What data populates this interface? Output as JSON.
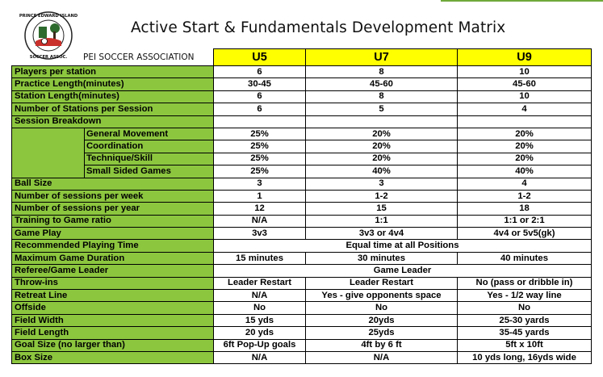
{
  "header": {
    "title": "Active Start & Fundamentals Development Matrix",
    "association": "PEI SOCCER ASSOCIATION",
    "logo_text_top": "PRINCE EDWARD ISLAND",
    "logo_text_bottom": "SOCCER ASSOC."
  },
  "colors": {
    "label_green": "#8cc63f",
    "header_yellow": "#ffff00"
  },
  "columns": [
    "U5",
    "U7",
    "U9"
  ],
  "rows": [
    {
      "label": "Players per station",
      "u5": "6",
      "u7": "8",
      "u9": "10"
    },
    {
      "label": "Practice Length(minutes)",
      "u5": "30-45",
      "u7": "45-60",
      "u9": "45-60"
    },
    {
      "label": "Station Length(minutes)",
      "u5": "6",
      "u7": "8",
      "u9": "10"
    },
    {
      "label": "Number of Stations per Session",
      "u5": "6",
      "u7": "5",
      "u9": "4"
    },
    {
      "label": "Session Breakdown"
    },
    {
      "label": "General Movement",
      "u5": "25%",
      "u7": "20%",
      "u9": "20%"
    },
    {
      "label": "Coordination",
      "u5": "25%",
      "u7": "20%",
      "u9": "20%"
    },
    {
      "label": "Technique/Skill",
      "u5": "25%",
      "u7": "20%",
      "u9": "20%"
    },
    {
      "label": "Small Sided Games",
      "u5": "25%",
      "u7": "40%",
      "u9": "40%"
    },
    {
      "label": "Ball Size",
      "u5": "3",
      "u7": "3",
      "u9": "4"
    },
    {
      "label": "Number of sessions per week",
      "u5": "1",
      "u7": "1-2",
      "u9": "1-2"
    },
    {
      "label": "Number of sessions per year",
      "u5": "12",
      "u7": "15",
      "u9": "18"
    },
    {
      "label": "Training to Game ratio",
      "u5": "N/A",
      "u7": "1:1",
      "u9": "1:1 or 2:1"
    },
    {
      "label": "Game Play",
      "u5": "3v3",
      "u7": "3v3 or 4v4",
      "u9": "4v4 or 5v5(gk)"
    },
    {
      "label": "Recommended Playing Time",
      "all": "Equal time at all Positions"
    },
    {
      "label": "Maximum Game Duration",
      "u5": "15 minutes",
      "u7": "30 minutes",
      "u9": "40 minutes"
    },
    {
      "label": "Referee/Game Leader",
      "all": "Game Leader"
    },
    {
      "label": "Throw-ins",
      "u5": "Leader Restart",
      "u7": "Leader Restart",
      "u9": "No (pass or dribble in)"
    },
    {
      "label": "Retreat Line",
      "u5": "N/A",
      "u7": "Yes - give opponents space",
      "u9": "Yes - 1/2 way line"
    },
    {
      "label": "Offside",
      "u5": "No",
      "u7": "No",
      "u9": "No"
    },
    {
      "label": "Field Width",
      "u5": "15 yds",
      "u7": "20yds",
      "u9": "25-30 yards"
    },
    {
      "label": "Field Length",
      "u5": "20 yds",
      "u7": "25yds",
      "u9": "35-45 yards"
    },
    {
      "label": "Goal Size (no larger than)",
      "u5": "6ft Pop-Up goals",
      "u7": "4ft by 6 ft",
      "u9": "5ft  x 10ft"
    },
    {
      "label": "Box Size",
      "u5": "N/A",
      "u7": "N/A",
      "u9": "10 yds long, 16yds wide"
    }
  ]
}
